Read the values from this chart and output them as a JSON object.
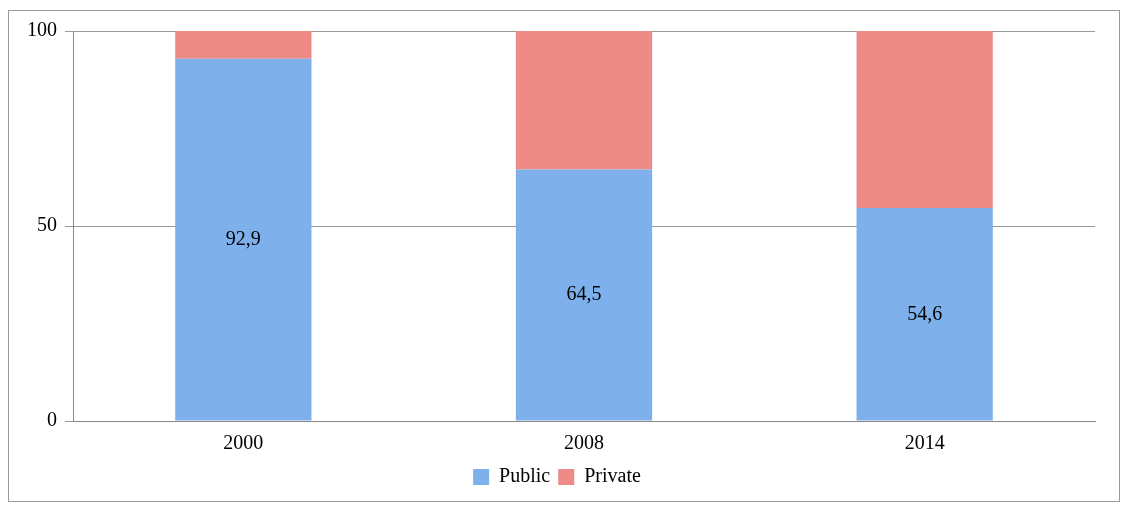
{
  "chart_data": {
    "type": "bar",
    "stacked": true,
    "categories": [
      "2000",
      "2008",
      "2014"
    ],
    "series": [
      {
        "name": "Public",
        "color": "#7eb1ec",
        "values": [
          92.9,
          64.5,
          54.6
        ],
        "value_labels": [
          "92,9",
          "64,5",
          "54,6"
        ]
      },
      {
        "name": "Private",
        "color": "#ee8b86",
        "values": [
          7.1,
          35.5,
          45.4
        ]
      }
    ],
    "ylim": [
      0,
      100
    ],
    "yticks": [
      0,
      50,
      100
    ],
    "grid": "y",
    "legend": "bottom"
  }
}
